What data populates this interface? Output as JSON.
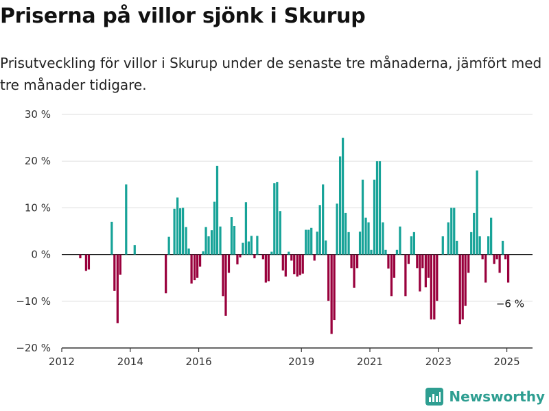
{
  "title": "Priserna på villor sjönk i Skurup",
  "subtitle": "Prisutveckling för villor i Skurup under de senaste tre månaderna, jämfört med tre månader tidigare.",
  "brand": "Newsworthy",
  "colors": {
    "positive": "#17a398",
    "negative": "#99003c",
    "grid": "#dddddd",
    "axis": "#333333",
    "brand": "#2e9e91"
  },
  "chart_data": {
    "type": "bar",
    "xlabel": "",
    "ylabel": "",
    "ylim": [
      -20,
      30
    ],
    "xlim": [
      2012.0,
      2025.75
    ],
    "grid": true,
    "y_ticks": [
      {
        "value": -20,
        "label": "−20 %"
      },
      {
        "value": -10,
        "label": "−10 %"
      },
      {
        "value": 0,
        "label": "0 %"
      },
      {
        "value": 10,
        "label": "10 %"
      },
      {
        "value": 20,
        "label": "20 %"
      },
      {
        "value": 30,
        "label": "30 %"
      }
    ],
    "x_ticks": [
      {
        "value": 2012,
        "label": "2012"
      },
      {
        "value": 2014,
        "label": "2014"
      },
      {
        "value": 2016,
        "label": "2016"
      },
      {
        "value": 2019,
        "label": "2019"
      },
      {
        "value": 2021,
        "label": "2021"
      },
      {
        "value": 2023,
        "label": "2023"
      },
      {
        "value": 2025,
        "label": "2025"
      }
    ],
    "annotation": {
      "x": 2025.08,
      "value": -6,
      "label": "−6 %"
    },
    "bars": [
      {
        "x": 2012.54,
        "value": -0.8
      },
      {
        "x": 2012.71,
        "value": -3.5
      },
      {
        "x": 2012.79,
        "value": -3.2
      },
      {
        "x": 2013.46,
        "value": 7
      },
      {
        "x": 2013.54,
        "value": -7.8
      },
      {
        "x": 2013.63,
        "value": -14.7
      },
      {
        "x": 2013.71,
        "value": -4.3
      },
      {
        "x": 2013.88,
        "value": 15
      },
      {
        "x": 2014.13,
        "value": 2
      },
      {
        "x": 2015.04,
        "value": -8.3
      },
      {
        "x": 2015.13,
        "value": 3.8
      },
      {
        "x": 2015.29,
        "value": 9.8
      },
      {
        "x": 2015.38,
        "value": 12.2
      },
      {
        "x": 2015.46,
        "value": 9.9
      },
      {
        "x": 2015.54,
        "value": 10
      },
      {
        "x": 2015.63,
        "value": 5.9
      },
      {
        "x": 2015.71,
        "value": 1.3
      },
      {
        "x": 2015.79,
        "value": -6.2
      },
      {
        "x": 2015.88,
        "value": -5.5
      },
      {
        "x": 2015.96,
        "value": -5
      },
      {
        "x": 2016.04,
        "value": -2.6
      },
      {
        "x": 2016.13,
        "value": 0.7
      },
      {
        "x": 2016.21,
        "value": 5.9
      },
      {
        "x": 2016.29,
        "value": 3.9
      },
      {
        "x": 2016.38,
        "value": 5.2
      },
      {
        "x": 2016.46,
        "value": 11.3
      },
      {
        "x": 2016.54,
        "value": 19
      },
      {
        "x": 2016.63,
        "value": 6
      },
      {
        "x": 2016.71,
        "value": -8.9
      },
      {
        "x": 2016.79,
        "value": -13.1
      },
      {
        "x": 2016.88,
        "value": -3.9
      },
      {
        "x": 2016.96,
        "value": 8
      },
      {
        "x": 2017.04,
        "value": 6.1
      },
      {
        "x": 2017.13,
        "value": -2.1
      },
      {
        "x": 2017.21,
        "value": -0.6
      },
      {
        "x": 2017.29,
        "value": 2.5
      },
      {
        "x": 2017.38,
        "value": 11.2
      },
      {
        "x": 2017.46,
        "value": 2.8
      },
      {
        "x": 2017.54,
        "value": 4
      },
      {
        "x": 2017.63,
        "value": -0.8
      },
      {
        "x": 2017.71,
        "value": 4
      },
      {
        "x": 2017.88,
        "value": -1
      },
      {
        "x": 2017.96,
        "value": -6
      },
      {
        "x": 2018.04,
        "value": -5.7
      },
      {
        "x": 2018.13,
        "value": 0.6
      },
      {
        "x": 2018.21,
        "value": 15.3
      },
      {
        "x": 2018.29,
        "value": 15.5
      },
      {
        "x": 2018.38,
        "value": 9.3
      },
      {
        "x": 2018.46,
        "value": -3.4
      },
      {
        "x": 2018.54,
        "value": -4.7
      },
      {
        "x": 2018.63,
        "value": 0.6
      },
      {
        "x": 2018.71,
        "value": -1.3
      },
      {
        "x": 2018.79,
        "value": -4.2
      },
      {
        "x": 2018.88,
        "value": -4.7
      },
      {
        "x": 2018.96,
        "value": -4.4
      },
      {
        "x": 2019.04,
        "value": -4.1
      },
      {
        "x": 2019.13,
        "value": 5.3
      },
      {
        "x": 2019.21,
        "value": 5.3
      },
      {
        "x": 2019.29,
        "value": 5.7
      },
      {
        "x": 2019.38,
        "value": -1.3
      },
      {
        "x": 2019.46,
        "value": 4.9
      },
      {
        "x": 2019.54,
        "value": 10.6
      },
      {
        "x": 2019.63,
        "value": 15
      },
      {
        "x": 2019.71,
        "value": 3
      },
      {
        "x": 2019.79,
        "value": -9.9
      },
      {
        "x": 2019.88,
        "value": -17
      },
      {
        "x": 2019.96,
        "value": -14
      },
      {
        "x": 2020.04,
        "value": 10.9
      },
      {
        "x": 2020.13,
        "value": 21
      },
      {
        "x": 2020.21,
        "value": 25
      },
      {
        "x": 2020.29,
        "value": 8.9
      },
      {
        "x": 2020.38,
        "value": 4.8
      },
      {
        "x": 2020.46,
        "value": -2.9
      },
      {
        "x": 2020.54,
        "value": -7.1
      },
      {
        "x": 2020.63,
        "value": -2.9
      },
      {
        "x": 2020.71,
        "value": 4.9
      },
      {
        "x": 2020.79,
        "value": 16
      },
      {
        "x": 2020.88,
        "value": 7.9
      },
      {
        "x": 2020.96,
        "value": 6.9
      },
      {
        "x": 2021.04,
        "value": 1
      },
      {
        "x": 2021.13,
        "value": 16
      },
      {
        "x": 2021.21,
        "value": 20
      },
      {
        "x": 2021.29,
        "value": 20
      },
      {
        "x": 2021.38,
        "value": 6.9
      },
      {
        "x": 2021.46,
        "value": 1
      },
      {
        "x": 2021.54,
        "value": -3
      },
      {
        "x": 2021.63,
        "value": -8.9
      },
      {
        "x": 2021.71,
        "value": -5
      },
      {
        "x": 2021.79,
        "value": 1
      },
      {
        "x": 2021.88,
        "value": 6
      },
      {
        "x": 2022.04,
        "value": -8.9
      },
      {
        "x": 2022.13,
        "value": -2
      },
      {
        "x": 2022.21,
        "value": 3.9
      },
      {
        "x": 2022.29,
        "value": 4.8
      },
      {
        "x": 2022.38,
        "value": -2.9
      },
      {
        "x": 2022.46,
        "value": -7.9
      },
      {
        "x": 2022.54,
        "value": -2.9
      },
      {
        "x": 2022.63,
        "value": -7
      },
      {
        "x": 2022.71,
        "value": -5
      },
      {
        "x": 2022.79,
        "value": -13.9
      },
      {
        "x": 2022.88,
        "value": -13.9
      },
      {
        "x": 2022.96,
        "value": -9.9
      },
      {
        "x": 2023.13,
        "value": 3.9
      },
      {
        "x": 2023.29,
        "value": 6.9
      },
      {
        "x": 2023.38,
        "value": 10
      },
      {
        "x": 2023.46,
        "value": 10
      },
      {
        "x": 2023.54,
        "value": 2.9
      },
      {
        "x": 2023.63,
        "value": -14.9
      },
      {
        "x": 2023.71,
        "value": -13.9
      },
      {
        "x": 2023.79,
        "value": -11
      },
      {
        "x": 2023.88,
        "value": -3.9
      },
      {
        "x": 2023.96,
        "value": 4.8
      },
      {
        "x": 2024.04,
        "value": 8.9
      },
      {
        "x": 2024.13,
        "value": 18
      },
      {
        "x": 2024.21,
        "value": 3.9
      },
      {
        "x": 2024.29,
        "value": -1
      },
      {
        "x": 2024.38,
        "value": -6
      },
      {
        "x": 2024.46,
        "value": 3.9
      },
      {
        "x": 2024.54,
        "value": 7.9
      },
      {
        "x": 2024.63,
        "value": -2
      },
      {
        "x": 2024.71,
        "value": -1
      },
      {
        "x": 2024.79,
        "value": -3.9
      },
      {
        "x": 2024.88,
        "value": 2.9
      },
      {
        "x": 2024.96,
        "value": -1
      },
      {
        "x": 2025.04,
        "value": -6
      }
    ]
  }
}
